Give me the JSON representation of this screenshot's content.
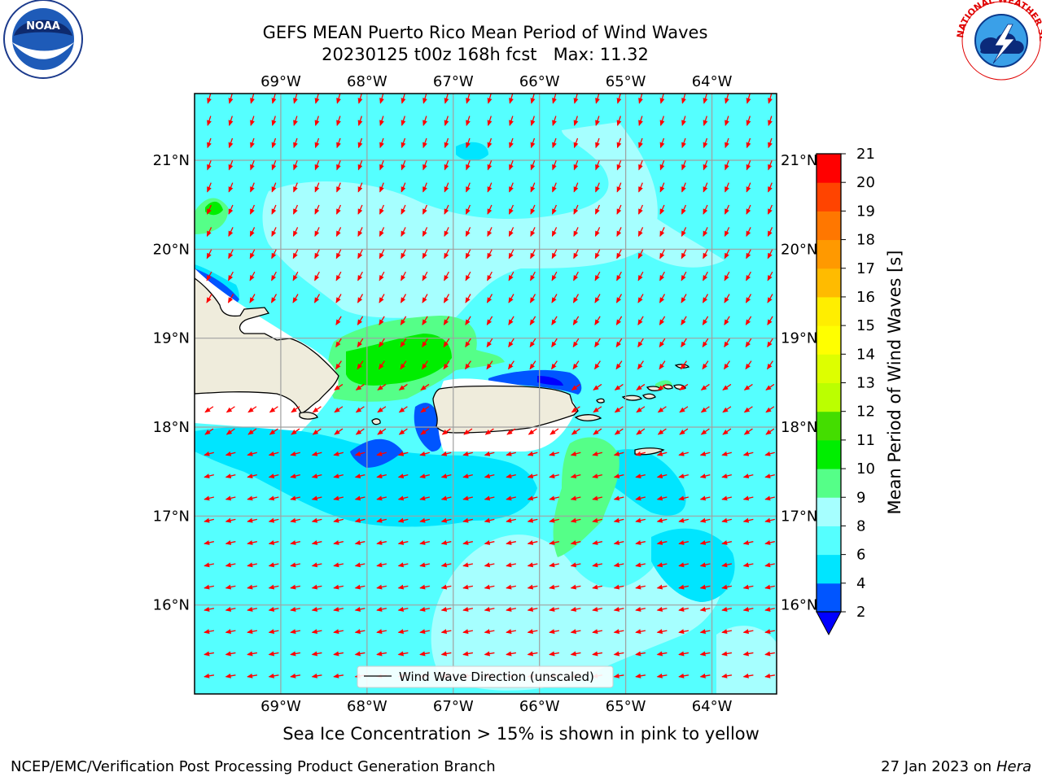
{
  "title": {
    "line1": "GEFS MEAN Puerto Rico Mean Period of Wind Waves",
    "line2": "20230125 t00z 168h fcst   Max: 11.32"
  },
  "map": {
    "lon_labels": [
      "69°W",
      "68°W",
      "67°W",
      "66°W",
      "65°W",
      "64°W"
    ],
    "lat_labels": [
      "21°N",
      "20°N",
      "19°N",
      "18°N",
      "17°N",
      "16°N"
    ],
    "lon_range": [
      -70.0,
      -63.25
    ],
    "lat_range": [
      15.0,
      21.75
    ],
    "land_color": "#efecdc",
    "coast_color": "#000000",
    "arrow_color": "#ff0000",
    "legend_label": "Wind Wave Direction (unscaled)"
  },
  "colorbar": {
    "label": "Mean Period of Wind Waves [s]",
    "ticks": [
      "2",
      "4",
      "6",
      "8",
      "9",
      "10",
      "11",
      "12",
      "13",
      "14",
      "15",
      "16",
      "17",
      "18",
      "19",
      "20",
      "21"
    ],
    "colors": [
      "#0055ff",
      "#00e5ff",
      "#55ffff",
      "#a6ffff",
      "#55ff88",
      "#00ee00",
      "#44dd00",
      "#bbff00",
      "#ddff00",
      "#ffff00",
      "#ffee00",
      "#ffbb00",
      "#ff9900",
      "#ff7700",
      "#ff4400",
      "#ff0000"
    ],
    "under_color": "#0000ff"
  },
  "subtitle": "Sea Ice Concentration > 15% is shown in pink to yellow",
  "footer": {
    "left": "NCEP/EMC/Verification Post Processing Product Generation Branch",
    "right_date": "27 Jan 2023 on ",
    "right_host": "Hera"
  },
  "logos": {
    "noaa_text": "NOAA",
    "nws_text": "NATIONAL WEATHER SERVICE"
  }
}
